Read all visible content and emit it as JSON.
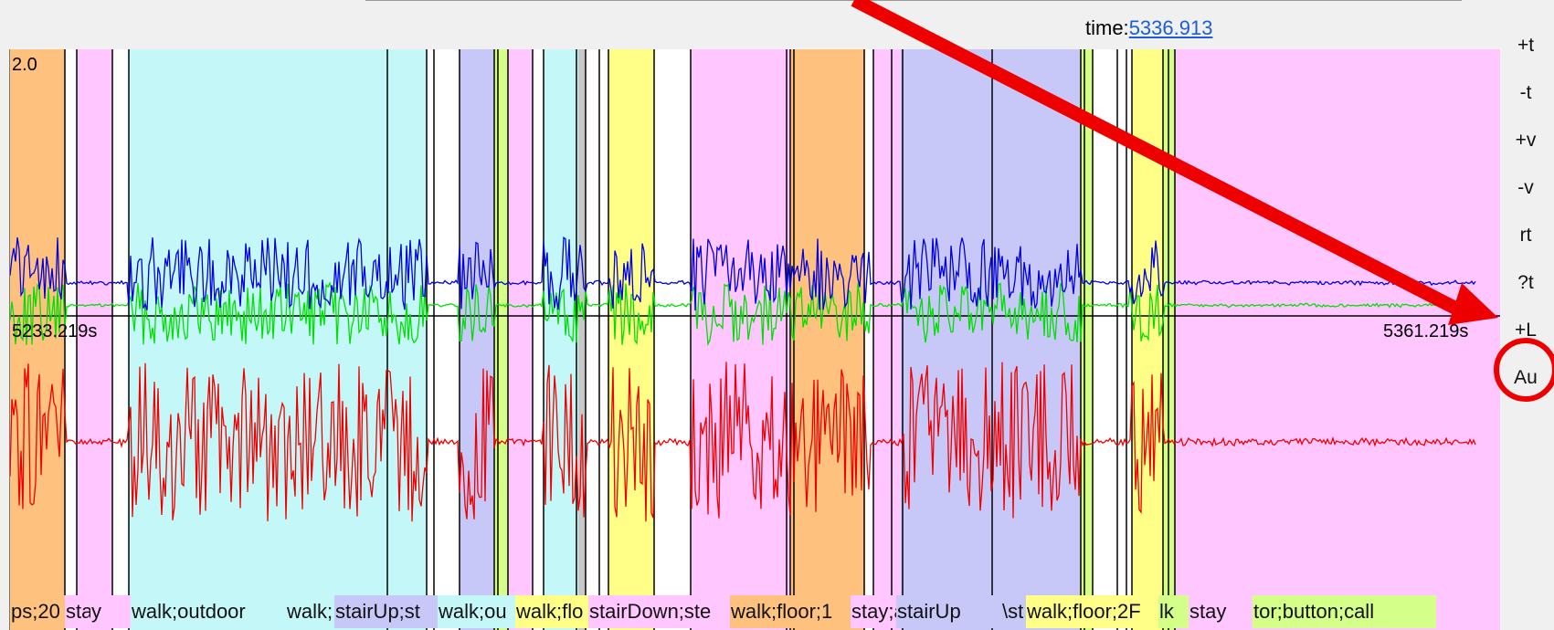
{
  "time": {
    "label": "time:",
    "value": "5336.913"
  },
  "axis": {
    "start_label": "5233.219s",
    "end_label": "5361.219s",
    "scale_label": "2.0"
  },
  "side_buttons": [
    "+t",
    "-t",
    "+v",
    "-v",
    "rt",
    "?t",
    "+L",
    "Au"
  ],
  "segment_colors": {
    "stay": "#ffc6ff",
    "stairUp": "#c7c7f8",
    "stairDown": "#ffff88",
    "walk_outdoor": "#c4f8f8",
    "elevator": "#ffc27e",
    "white": "#ffffff",
    "floor": "#d4ff88",
    "grey": "#c8c8c8"
  },
  "annotation_labels": [
    {
      "text": "ps;20",
      "color": "#ffc27e"
    },
    {
      "text": "stay",
      "color": "#ffc6ff"
    },
    {
      "text": "y",
      "color": "#ffc6ff"
    },
    {
      "text": "walk;outdoor",
      "color": "#c4f8f8"
    },
    {
      "text": "walk;",
      "color": "#c4f8f8"
    },
    {
      "text": "stairUp;st",
      "color": "#c7c7f8"
    },
    {
      "text": "walk;ou",
      "color": "#c4f8f8"
    },
    {
      "text": "walk;flo",
      "color": "#ffff88"
    },
    {
      "text": "stairDown;ste",
      "color": "#ffc6ff"
    },
    {
      "text": "walk;floor;1",
      "color": "#ffc27e"
    },
    {
      "text": "stay;a",
      "color": "#ffc6ff"
    },
    {
      "text": "stairUp",
      "color": "#c7c7f8"
    },
    {
      "text": "\\st",
      "color": "#c7c7f8"
    },
    {
      "text": "walk;floor;2F",
      "color": "#ffff88"
    },
    {
      "text": "lk",
      "color": "#d4ff88"
    },
    {
      "text": "stay",
      "color": "#ffc6ff"
    },
    {
      "text": "tor;button;call",
      "color": "#d4ff88"
    }
  ],
  "series_colors": {
    "blue": "#0000e0",
    "green": "#00e000",
    "red": "#ee0000"
  },
  "callout_color": "#ee0000"
}
